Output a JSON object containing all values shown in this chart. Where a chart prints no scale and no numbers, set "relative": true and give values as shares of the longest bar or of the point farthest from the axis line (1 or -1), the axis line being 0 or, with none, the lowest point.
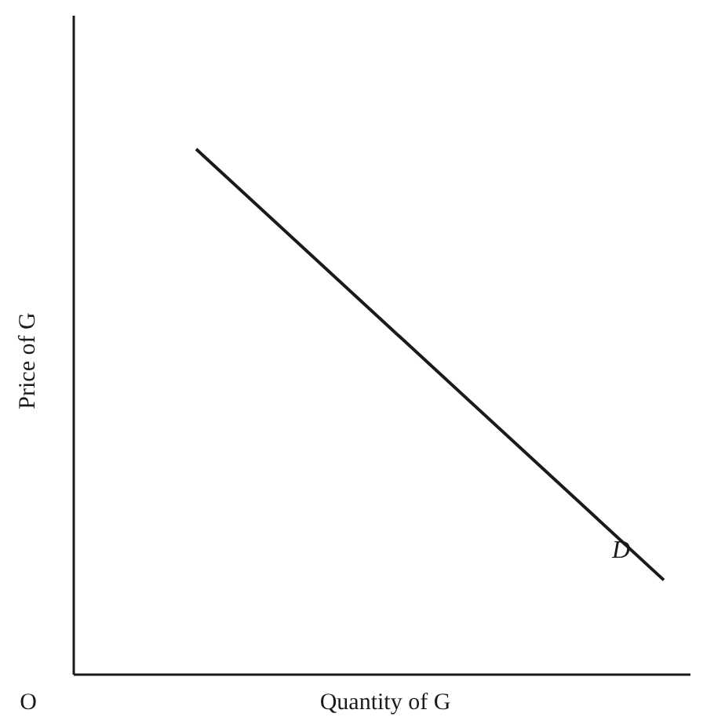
{
  "chart_data": {
    "type": "line",
    "relative": true,
    "xlabel": "Quantity of G",
    "ylabel": "Price of G",
    "categories": [
      null,
      null
    ],
    "series": [
      {
        "name": "D",
        "color": "#1a1a1a",
        "values": [
          1,
          0.18
        ]
      }
    ],
    "annotations": [
      "O"
    ],
    "marker": "none",
    "line_style": "solid",
    "grid": false
  }
}
